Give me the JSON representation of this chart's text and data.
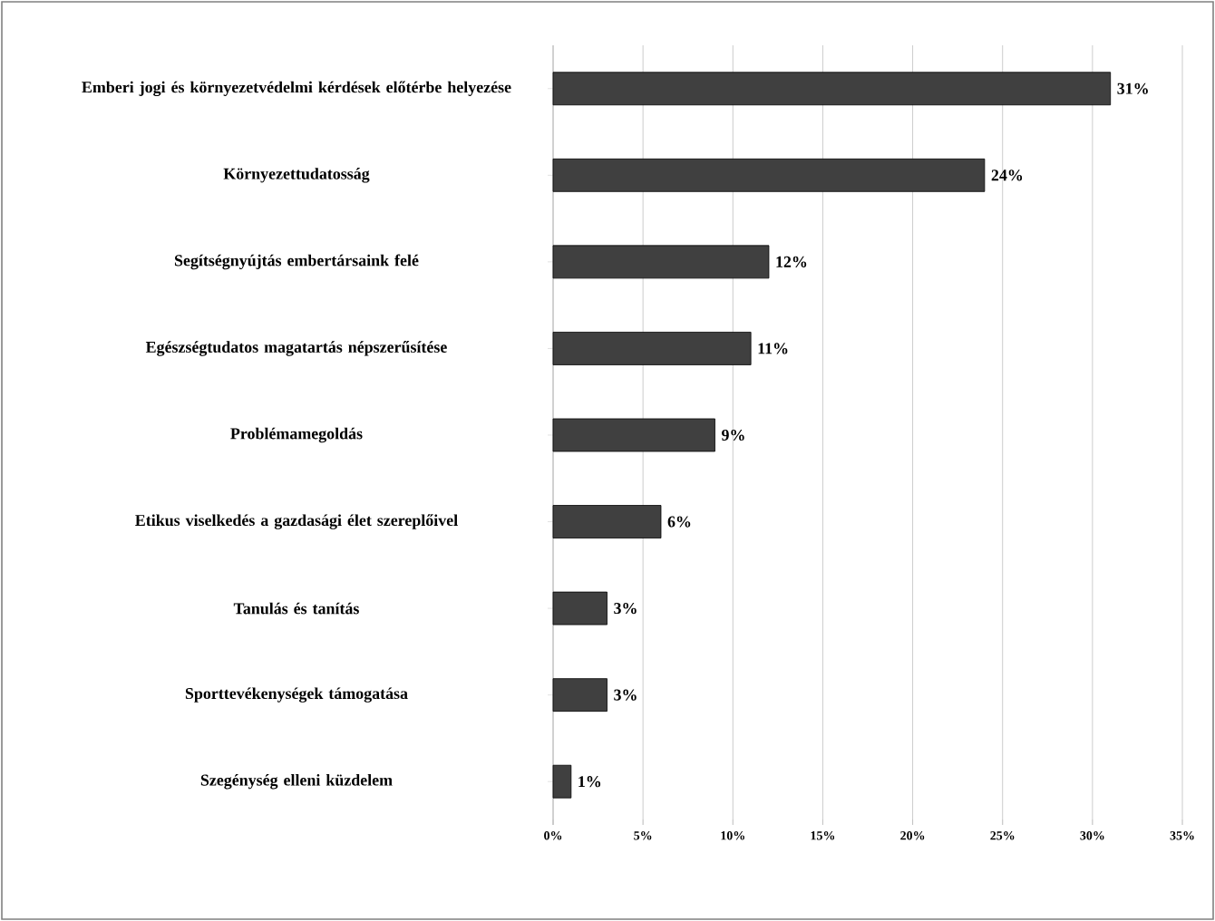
{
  "chart_data": {
    "type": "bar",
    "orientation": "horizontal",
    "categories": [
      "Emberi jogi és környezetvédelmi kérdések előtérbe helyezése",
      "Környezettudatosság",
      "Segítségnyújtás embertársaink felé",
      "Egészségtudatos magatartás népszerűsítése",
      "Problémamegoldás",
      "Etikus viselkedés a gazdasági élet szereplőivel",
      "Tanulás és tanítás",
      "Sporttevékenységek támogatása",
      "Szegénység elleni küzdelem"
    ],
    "values": [
      31,
      24,
      12,
      11,
      9,
      6,
      3,
      3,
      1
    ],
    "value_labels": [
      "31%",
      "24%",
      "12%",
      "11%",
      "9%",
      "6%",
      "3%",
      "3%",
      "1%"
    ],
    "color": "#404040",
    "xlim": [
      0,
      35
    ],
    "xticks": [
      {
        "value": 0,
        "label": "0%"
      },
      {
        "value": 5,
        "label": "5%"
      },
      {
        "value": 10,
        "label": "10%"
      },
      {
        "value": 15,
        "label": "15%"
      },
      {
        "value": 20,
        "label": "20%"
      },
      {
        "value": 25,
        "label": "25%"
      },
      {
        "value": 30,
        "label": "30%"
      },
      {
        "value": 35,
        "label": "35%"
      }
    ],
    "grid": "x"
  }
}
